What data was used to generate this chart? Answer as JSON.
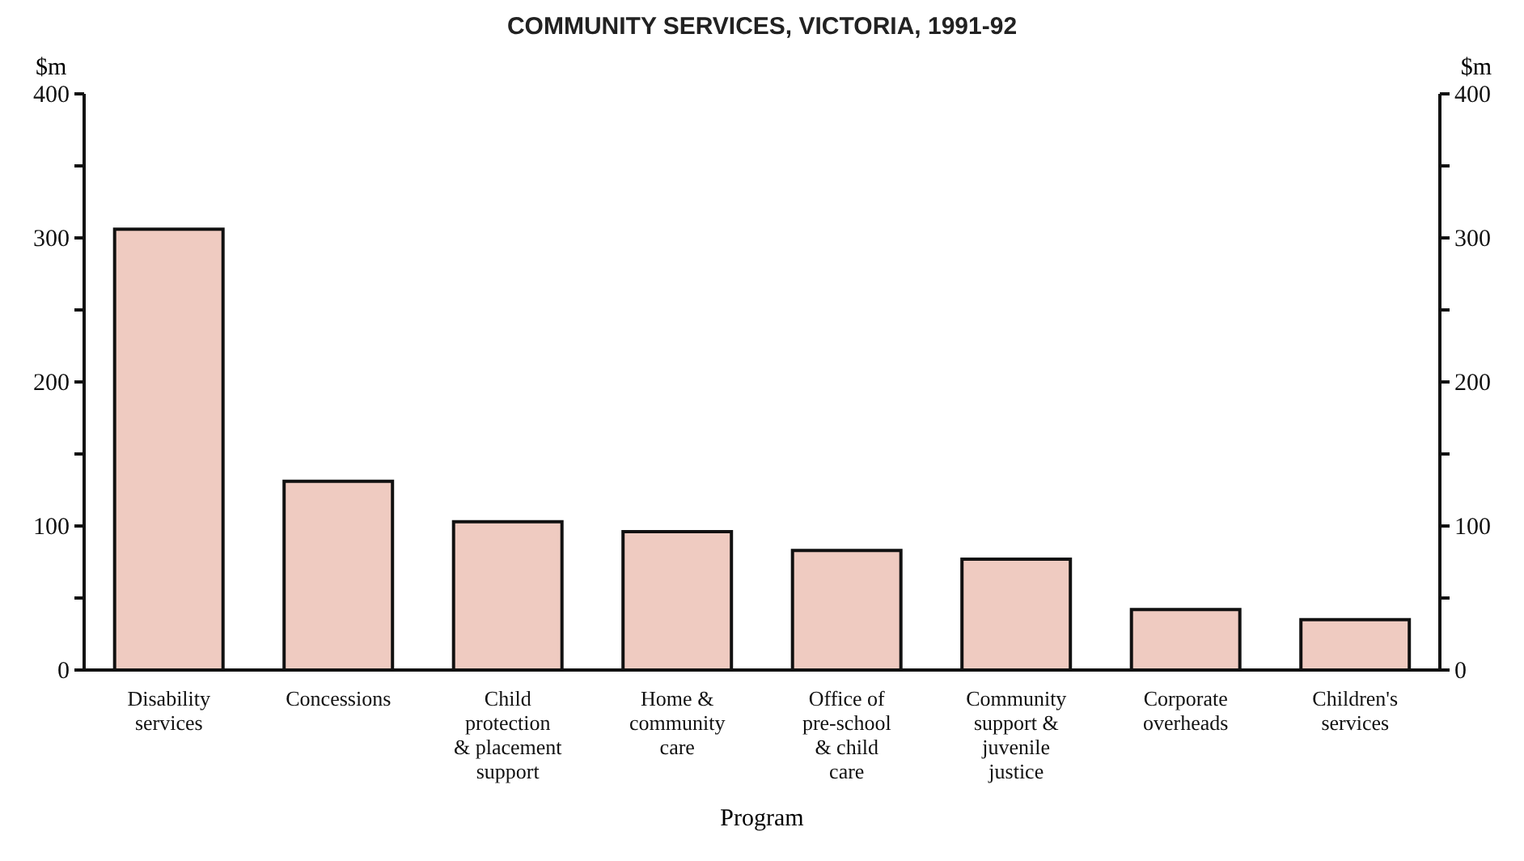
{
  "chart_data": {
    "type": "bar",
    "title": "COMMUNITY SERVICES, VICTORIA, 1991-92",
    "xlabel": "Program",
    "ylabel": "$m",
    "y2label": "$m",
    "categories": [
      "Disability services",
      "Concessions",
      "Child protection & placement support",
      "Home & community care",
      "Office of pre-school & child care",
      "Community support & juvenile justice",
      "Corporate overheads",
      "Children's services"
    ],
    "values": [
      306,
      131,
      103,
      96,
      83,
      77,
      42,
      35
    ],
    "color": "#efcbc1",
    "ylim": [
      0,
      400
    ],
    "yticks": [
      0,
      {
        "value": 50,
        "label": null
      },
      100,
      {
        "value": 150,
        "label": null
      },
      200,
      {
        "value": 250,
        "label": null
      },
      300,
      {
        "value": 350,
        "label": null
      },
      400
    ],
    "y2lim": [
      0,
      400
    ],
    "y2ticks": [
      0,
      {
        "value": 50,
        "label": null
      },
      100,
      {
        "value": 150,
        "label": null
      },
      200,
      {
        "value": 250,
        "label": null
      },
      300,
      {
        "value": 350,
        "label": null
      },
      400
    ],
    "grid": false,
    "legend": false
  }
}
